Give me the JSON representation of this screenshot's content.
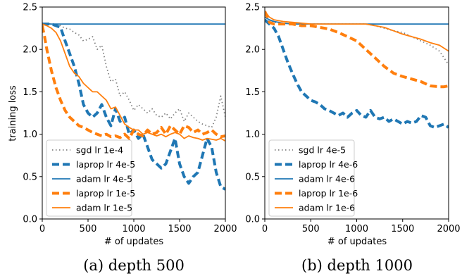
{
  "chart_data": [
    {
      "type": "line",
      "caption": "(a) depth 500",
      "xlabel": "# of updates",
      "ylabel": "training loss",
      "xlim": [
        0,
        2000
      ],
      "ylim": [
        0,
        2.5
      ],
      "xticks": [
        "0",
        "500",
        "1000",
        "1500",
        "2000"
      ],
      "yticks": [
        "0.0",
        "0.5",
        "1.0",
        "1.5",
        "2.0",
        "2.5"
      ],
      "legend_position": "lower-left",
      "series": [
        {
          "name": "sgd lr 1e-4",
          "color": "#808080",
          "style": "dotted",
          "x": [
            0,
            100,
            200,
            250,
            300,
            350,
            400,
            450,
            500,
            550,
            600,
            650,
            700,
            750,
            800,
            850,
            900,
            950,
            1000,
            1050,
            1100,
            1150,
            1200,
            1250,
            1300,
            1350,
            1400,
            1450,
            1500,
            1550,
            1600,
            1650,
            1700,
            1750,
            1800,
            1850,
            1900,
            1950,
            2000
          ],
          "y": [
            2.31,
            2.3,
            2.28,
            2.25,
            2.24,
            2.2,
            2.17,
            2.1,
            2.12,
            2.15,
            2.0,
            2.05,
            1.8,
            1.62,
            1.65,
            1.45,
            1.5,
            1.4,
            1.28,
            1.35,
            1.3,
            1.25,
            1.3,
            1.22,
            1.2,
            1.25,
            1.18,
            1.25,
            1.3,
            1.15,
            1.25,
            1.2,
            1.15,
            1.12,
            1.1,
            1.08,
            1.2,
            1.45,
            1.2
          ]
        },
        {
          "name": "laprop lr 4e-5",
          "color": "#1f77b4",
          "style": "dashed",
          "x": [
            0,
            100,
            150,
            200,
            250,
            300,
            350,
            400,
            450,
            500,
            550,
            600,
            650,
            700,
            750,
            800,
            850,
            900,
            950,
            1000,
            1050,
            1100,
            1150,
            1200,
            1250,
            1300,
            1350,
            1400,
            1450,
            1500,
            1550,
            1600,
            1650,
            1700,
            1750,
            1800,
            1850,
            1900,
            1950,
            2000
          ],
          "y": [
            2.3,
            2.3,
            2.28,
            2.26,
            2.1,
            1.95,
            1.8,
            1.6,
            1.35,
            1.25,
            1.2,
            1.25,
            1.35,
            1.2,
            1.1,
            1.3,
            1.15,
            1.2,
            1.0,
            1.05,
            0.95,
            1.0,
            0.85,
            0.7,
            0.65,
            0.6,
            0.65,
            0.8,
            0.95,
            0.65,
            0.5,
            0.42,
            0.5,
            0.55,
            0.75,
            0.95,
            0.85,
            0.55,
            0.38,
            0.35
          ]
        },
        {
          "name": "adam lr 4e-5",
          "color": "#1f77b4",
          "style": "solid",
          "x": [
            0,
            2000
          ],
          "y": [
            2.3,
            2.3
          ]
        },
        {
          "name": "laprop lr 1e-5",
          "color": "#ff7f0e",
          "style": "dashed",
          "x": [
            0,
            25,
            50,
            100,
            150,
            200,
            250,
            300,
            350,
            400,
            450,
            500,
            550,
            600,
            650,
            700,
            750,
            800,
            850,
            900,
            950,
            1000,
            1050,
            1100,
            1150,
            1200,
            1250,
            1300,
            1350,
            1400,
            1450,
            1500,
            1550,
            1600,
            1650,
            1700,
            1750,
            1800,
            1850,
            1900,
            1950,
            2000
          ],
          "y": [
            2.28,
            2.15,
            2.0,
            1.75,
            1.55,
            1.4,
            1.28,
            1.2,
            1.15,
            1.1,
            1.08,
            1.05,
            1.02,
            1.0,
            0.98,
            1.0,
            0.97,
            0.98,
            0.96,
            1.0,
            0.95,
            1.05,
            1.0,
            0.98,
            1.05,
            1.0,
            1.02,
            1.08,
            1.0,
            1.1,
            1.05,
            1.0,
            1.1,
            1.08,
            1.02,
            1.05,
            1.0,
            1.02,
            1.05,
            1.0,
            0.97,
            0.98
          ]
        },
        {
          "name": "adam lr 1e-5",
          "color": "#ff7f0e",
          "style": "solid",
          "x": [
            0,
            50,
            100,
            150,
            200,
            250,
            300,
            350,
            400,
            450,
            500,
            550,
            600,
            650,
            700,
            750,
            800,
            850,
            900,
            950,
            1000,
            1050,
            1100,
            1150,
            1200,
            1250,
            1300,
            1350,
            1400,
            1450,
            1500,
            1550,
            1600,
            1650,
            1700,
            1750,
            1800,
            1850,
            1900,
            1950,
            2000
          ],
          "y": [
            2.3,
            2.28,
            2.25,
            2.2,
            2.1,
            1.95,
            1.8,
            1.72,
            1.68,
            1.6,
            1.55,
            1.5,
            1.5,
            1.45,
            1.4,
            1.3,
            1.32,
            1.22,
            1.12,
            1.08,
            1.05,
            1.05,
            1.0,
            1.02,
            1.0,
            0.98,
            1.0,
            0.97,
            1.0,
            1.02,
            1.0,
            0.95,
            0.98,
            0.96,
            0.95,
            0.93,
            0.95,
            0.94,
            0.93,
            0.95,
            0.92
          ]
        }
      ]
    },
    {
      "type": "line",
      "caption": "(b) depth 1000",
      "xlabel": "# of updates",
      "ylabel": "",
      "xlim": [
        0,
        2000
      ],
      "ylim": [
        0,
        2.5
      ],
      "xticks": [
        "0",
        "500",
        "1000",
        "1500",
        "2000"
      ],
      "yticks": [
        "0.0",
        "0.5",
        "1.0",
        "1.5",
        "2.0",
        "2.5"
      ],
      "legend_position": "lower-left",
      "series": [
        {
          "name": "sgd lr 4e-5",
          "color": "#808080",
          "style": "dotted",
          "x": [
            0,
            50,
            100,
            200,
            300,
            400,
            500,
            600,
            700,
            800,
            900,
            1000,
            1100,
            1200,
            1300,
            1400,
            1500,
            1600,
            1700,
            1800,
            1900,
            2000
          ],
          "y": [
            2.35,
            2.33,
            2.32,
            2.31,
            2.3,
            2.3,
            2.3,
            2.3,
            2.3,
            2.3,
            2.3,
            2.3,
            2.3,
            2.28,
            2.25,
            2.22,
            2.2,
            2.15,
            2.1,
            2.05,
            1.98,
            1.82
          ]
        },
        {
          "name": "laprop lr 4e-6",
          "color": "#1f77b4",
          "style": "dashed",
          "x": [
            0,
            50,
            100,
            150,
            200,
            250,
            300,
            350,
            400,
            450,
            500,
            550,
            600,
            650,
            700,
            750,
            800,
            850,
            900,
            950,
            1000,
            1050,
            1100,
            1150,
            1200,
            1250,
            1300,
            1350,
            1400,
            1450,
            1500,
            1550,
            1600,
            1650,
            1700,
            1750,
            1800,
            1850,
            1900,
            1950,
            2000
          ],
          "y": [
            2.35,
            2.3,
            2.25,
            2.15,
            2.0,
            1.85,
            1.72,
            1.6,
            1.5,
            1.45,
            1.4,
            1.38,
            1.35,
            1.3,
            1.28,
            1.25,
            1.22,
            1.25,
            1.2,
            1.25,
            1.28,
            1.22,
            1.2,
            1.28,
            1.2,
            1.18,
            1.2,
            1.15,
            1.18,
            1.15,
            1.12,
            1.15,
            1.13,
            1.15,
            1.22,
            1.2,
            1.1,
            1.08,
            1.1,
            1.12,
            1.08
          ]
        },
        {
          "name": "adam lr 4e-6",
          "color": "#1f77b4",
          "style": "solid",
          "x": [
            0,
            50,
            100,
            200,
            300,
            500,
            1000,
            1500,
            2000
          ],
          "y": [
            2.38,
            2.35,
            2.33,
            2.31,
            2.3,
            2.3,
            2.3,
            2.3,
            2.3
          ]
        },
        {
          "name": "laprop lr 1e-6",
          "color": "#ff7f0e",
          "style": "dashed",
          "x": [
            0,
            50,
            100,
            200,
            300,
            400,
            500,
            600,
            700,
            800,
            900,
            1000,
            1100,
            1200,
            1300,
            1400,
            1500,
            1600,
            1700,
            1800,
            1900,
            1950,
            2000
          ],
          "y": [
            2.45,
            2.32,
            2.3,
            2.3,
            2.3,
            2.28,
            2.28,
            2.26,
            2.24,
            2.2,
            2.15,
            2.1,
            2.0,
            1.9,
            1.8,
            1.72,
            1.68,
            1.65,
            1.62,
            1.57,
            1.56,
            1.56,
            1.57
          ]
        },
        {
          "name": "adam lr 1e-6",
          "color": "#ff7f0e",
          "style": "solid",
          "x": [
            0,
            50,
            100,
            200,
            300,
            400,
            500,
            600,
            700,
            800,
            900,
            1000,
            1100,
            1200,
            1300,
            1400,
            1500,
            1600,
            1700,
            1800,
            1900,
            2000
          ],
          "y": [
            2.45,
            2.38,
            2.35,
            2.33,
            2.32,
            2.31,
            2.3,
            2.3,
            2.3,
            2.3,
            2.3,
            2.3,
            2.3,
            2.28,
            2.26,
            2.22,
            2.18,
            2.15,
            2.12,
            2.08,
            2.05,
            1.98
          ]
        }
      ]
    }
  ]
}
